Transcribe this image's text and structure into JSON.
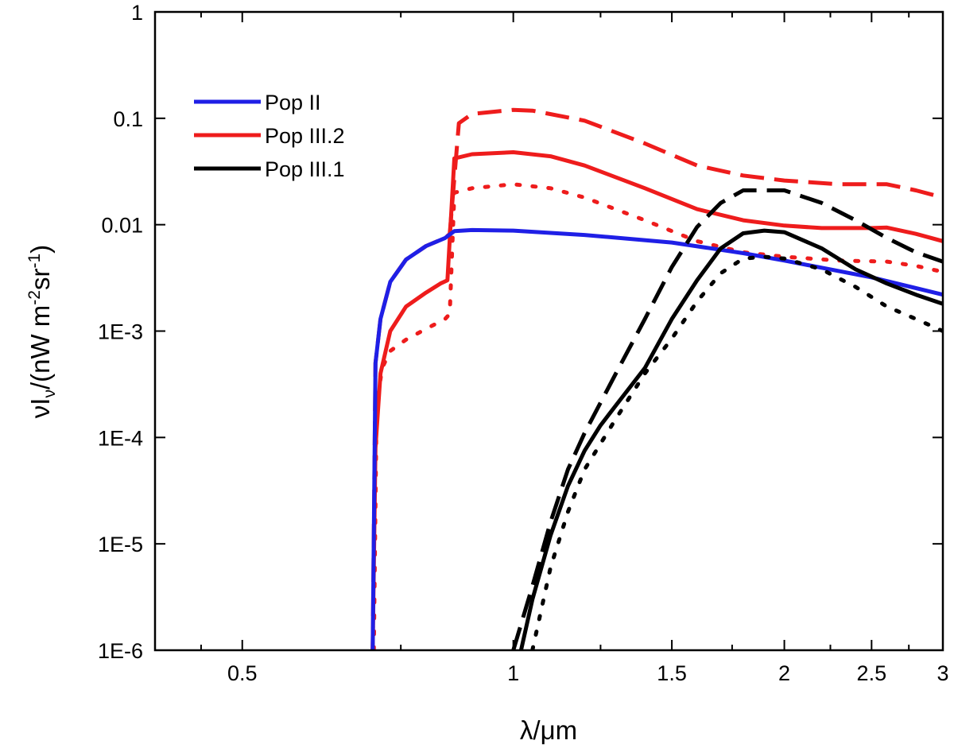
{
  "chart_data": {
    "type": "line",
    "xlabel": "λ/μm",
    "ylabel": "νI",
    "ylabel_sub": "ν",
    "ylabel_tail": "/(nW m",
    "ylabel_sup1": "-2",
    "ylabel_mid": "sr",
    "ylabel_sup2": "-1",
    "ylabel_close": ")",
    "xscale": "log",
    "yscale": "log",
    "xlim": [
      0.4,
      3.0
    ],
    "ylim": [
      1e-06,
      1
    ],
    "xticks": [
      {
        "value": 0.5,
        "label": "0.5"
      },
      {
        "value": 1,
        "label": "1"
      },
      {
        "value": 1.5,
        "label": "1.5"
      },
      {
        "value": 2,
        "label": "2"
      },
      {
        "value": 2.5,
        "label": "2.5"
      },
      {
        "value": 3,
        "label": "3"
      }
    ],
    "yticks": [
      {
        "value": 1e-06,
        "label": "1E-6"
      },
      {
        "value": 1e-05,
        "label": "1E-5"
      },
      {
        "value": 0.0001,
        "label": "1E-4"
      },
      {
        "value": 0.001,
        "label": "1E-3"
      },
      {
        "value": 0.01,
        "label": "0.01"
      },
      {
        "value": 0.1,
        "label": "0.1"
      },
      {
        "value": 1,
        "label": "1"
      }
    ],
    "legend_placement": "top-left",
    "legend": [
      {
        "label": "Pop II",
        "color": "#1f1fe6"
      },
      {
        "label": "Pop III.2",
        "color": "#ee1c1c"
      },
      {
        "label": "Pop III.1",
        "color": "#000000"
      }
    ],
    "series": [
      {
        "id": "red-solid",
        "color": "#ee1c1c",
        "dash": "solid",
        "x": [
          0.698,
          0.703,
          0.712,
          0.73,
          0.76,
          0.8,
          0.83,
          0.845,
          0.86,
          0.9,
          1.0,
          1.1,
          1.2,
          1.4,
          1.6,
          1.8,
          2.0,
          2.2,
          2.5,
          2.6,
          2.8,
          3.0
        ],
        "y": [
          1e-06,
          8e-05,
          0.0004,
          0.001,
          0.0017,
          0.0023,
          0.0028,
          0.003,
          0.042,
          0.046,
          0.048,
          0.044,
          0.036,
          0.022,
          0.014,
          0.011,
          0.0098,
          0.0093,
          0.0093,
          0.0094,
          0.0082,
          0.007
        ]
      },
      {
        "id": "red-dashed",
        "color": "#ee1c1c",
        "dash": "dashed",
        "x": [
          0.698,
          0.703,
          0.712,
          0.73,
          0.76,
          0.8,
          0.84,
          0.85,
          0.87,
          0.9,
          1.0,
          1.05,
          1.2,
          1.4,
          1.6,
          1.8,
          2.0,
          2.3,
          2.6,
          2.8,
          3.0
        ],
        "y": [
          1e-06,
          0.0005,
          0.0013,
          0.0029,
          0.0047,
          0.0063,
          0.0075,
          0.0082,
          0.09,
          0.11,
          0.12,
          0.118,
          0.095,
          0.058,
          0.036,
          0.029,
          0.026,
          0.024,
          0.024,
          0.021,
          0.018
        ]
      },
      {
        "id": "red-dotted",
        "color": "#ee1c1c",
        "dash": "dotted",
        "x": [
          0.7,
          0.705,
          0.715,
          0.73,
          0.76,
          0.8,
          0.84,
          0.85,
          0.86,
          0.9,
          1.0,
          1.1,
          1.2,
          1.4,
          1.6,
          1.8,
          2.0,
          2.3,
          2.6,
          2.8,
          3.0
        ],
        "y": [
          1e-06,
          0.0002,
          0.00045,
          0.00065,
          0.00083,
          0.00105,
          0.0013,
          0.00145,
          0.02,
          0.022,
          0.024,
          0.022,
          0.018,
          0.011,
          0.007,
          0.0055,
          0.005,
          0.0046,
          0.0045,
          0.0041,
          0.0036
        ]
      },
      {
        "id": "blue-solid",
        "color": "#1f1fe6",
        "dash": "solid",
        "x": [
          0.698,
          0.703,
          0.712,
          0.73,
          0.76,
          0.8,
          0.84,
          0.86,
          0.9,
          1.0,
          1.2,
          1.5,
          1.8,
          2.0,
          2.5,
          3.0
        ],
        "y": [
          1e-06,
          0.0005,
          0.0013,
          0.0029,
          0.0047,
          0.0063,
          0.0075,
          0.0087,
          0.0089,
          0.0088,
          0.008,
          0.0068,
          0.0054,
          0.0046,
          0.0032,
          0.0022
        ]
      },
      {
        "id": "black-solid",
        "color": "#000000",
        "dash": "solid",
        "x": [
          1.02,
          1.05,
          1.1,
          1.15,
          1.2,
          1.25,
          1.3,
          1.4,
          1.5,
          1.6,
          1.7,
          1.8,
          1.9,
          2.0,
          2.2,
          2.4,
          2.6,
          2.8,
          3.0
        ],
        "y": [
          1e-06,
          3e-06,
          1.2e-05,
          3.5e-05,
          7.5e-05,
          0.00013,
          0.0002,
          0.00045,
          0.0013,
          0.003,
          0.006,
          0.0083,
          0.0088,
          0.0085,
          0.006,
          0.0038,
          0.0028,
          0.0022,
          0.0018
        ]
      },
      {
        "id": "black-dashed",
        "color": "#000000",
        "dash": "dashed",
        "x": [
          1.0,
          1.05,
          1.1,
          1.15,
          1.2,
          1.3,
          1.4,
          1.5,
          1.6,
          1.7,
          1.8,
          2.0,
          2.2,
          2.4,
          2.6,
          2.8,
          3.0
        ],
        "y": [
          1e-06,
          4e-06,
          1.6e-05,
          5e-05,
          0.00011,
          0.0004,
          0.0013,
          0.004,
          0.0095,
          0.016,
          0.021,
          0.021,
          0.016,
          0.011,
          0.0075,
          0.0055,
          0.0045
        ]
      },
      {
        "id": "black-dotted",
        "color": "#000000",
        "dash": "dotted",
        "x": [
          1.05,
          1.1,
          1.15,
          1.2,
          1.3,
          1.4,
          1.5,
          1.6,
          1.7,
          1.8,
          1.9,
          2.0,
          2.2,
          2.4,
          2.6,
          2.8,
          3.0
        ],
        "y": [
          1e-06,
          6e-06,
          2e-05,
          5e-05,
          0.00015,
          0.0004,
          0.00085,
          0.0019,
          0.0035,
          0.0048,
          0.005,
          0.0048,
          0.0038,
          0.0026,
          0.0017,
          0.0013,
          0.001
        ]
      }
    ]
  }
}
